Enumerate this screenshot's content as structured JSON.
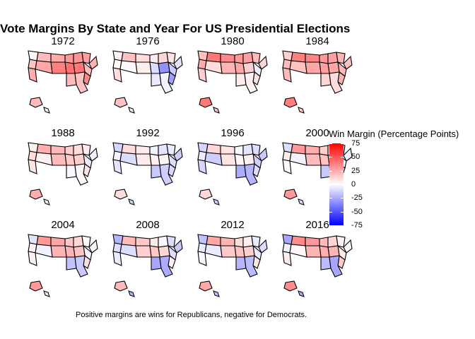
{
  "chart_data": {
    "type": "heatmap",
    "title": "Vote Margins By State and Year For US Presidential Elections",
    "caption": "Positive margins are wins for Republicans, negative for Democrats.",
    "legend": {
      "title": "Win Margin (Percentage Points)",
      "ticks": [
        "75",
        "50",
        "25",
        "0",
        "-25",
        "-50",
        "-75"
      ],
      "tick_values": [
        75,
        50,
        25,
        0,
        -25,
        -50,
        -75
      ],
      "range": [
        -75,
        75
      ],
      "colors": {
        "high": "#ff0000",
        "mid": "#ffffff",
        "low": "#0000ff"
      },
      "placement": "right"
    },
    "panels": [
      {
        "year": "1972",
        "margins": [
          2,
          18,
          20,
          25,
          30,
          32,
          28,
          22,
          20,
          35,
          40,
          42,
          38,
          26,
          24,
          20,
          18
        ]
      },
      {
        "year": "1976",
        "margins": [
          4,
          2,
          18,
          10,
          6,
          12,
          8,
          -8,
          -15,
          -28,
          -32,
          -10,
          5,
          2,
          10,
          -6,
          -4
        ]
      },
      {
        "year": "1980",
        "margins": [
          18,
          25,
          40,
          35,
          30,
          28,
          20,
          12,
          -5,
          8,
          14,
          26,
          22,
          10,
          14,
          6,
          4
        ]
      },
      {
        "year": "1984",
        "margins": [
          14,
          20,
          38,
          36,
          30,
          28,
          22,
          18,
          20,
          22,
          26,
          28,
          26,
          18,
          20,
          12,
          10
        ]
      },
      {
        "year": "1988",
        "margins": [
          4,
          10,
          24,
          20,
          14,
          10,
          6,
          -4,
          -6,
          8,
          14,
          16,
          20,
          4,
          8,
          -2,
          2
        ]
      },
      {
        "year": "1992",
        "margins": [
          -12,
          -4,
          10,
          6,
          -4,
          -8,
          -6,
          -14,
          -10,
          -12,
          2,
          4,
          6,
          -10,
          -8,
          -16,
          -14
        ]
      },
      {
        "year": "1996",
        "margins": [
          -12,
          -6,
          12,
          8,
          -2,
          -8,
          -10,
          -16,
          -14,
          -10,
          4,
          2,
          8,
          -14,
          -12,
          -24,
          -22
        ]
      },
      {
        "year": "2000",
        "margins": [
          -10,
          6,
          30,
          24,
          14,
          10,
          2,
          -4,
          -2,
          8,
          14,
          18,
          20,
          -4,
          2,
          -16,
          -14
        ]
      },
      {
        "year": "2004",
        "margins": [
          -8,
          4,
          30,
          26,
          16,
          12,
          2,
          -2,
          -4,
          10,
          18,
          22,
          22,
          -4,
          4,
          -18,
          -16
        ]
      },
      {
        "year": "2008",
        "margins": [
          -22,
          -10,
          20,
          16,
          6,
          -2,
          -10,
          -16,
          -10,
          4,
          12,
          16,
          14,
          -10,
          -6,
          -26,
          -24
        ]
      },
      {
        "year": "2012",
        "margins": [
          -18,
          -6,
          26,
          22,
          10,
          4,
          -6,
          -10,
          -6,
          8,
          14,
          18,
          16,
          -6,
          -2,
          -22,
          -20
        ]
      },
      {
        "year": "2016",
        "margins": [
          -26,
          -4,
          34,
          30,
          20,
          12,
          4,
          2,
          6,
          16,
          22,
          24,
          22,
          2,
          6,
          -20,
          -26
        ]
      }
    ]
  }
}
